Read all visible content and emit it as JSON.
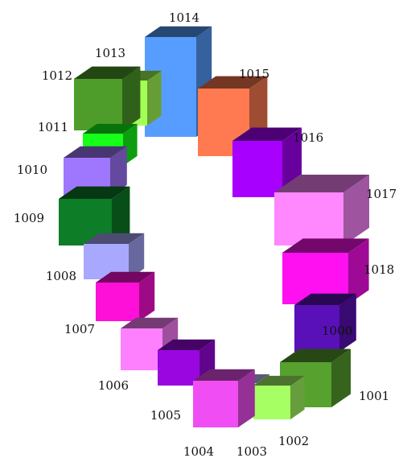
{
  "diagram": {
    "blocks": [
      {
        "label": "1000",
        "color": "#5a10b8"
      },
      {
        "label": "1001",
        "color": "#57a12e"
      },
      {
        "label": "1002",
        "color": "#a6ff63"
      },
      {
        "label": "1003",
        "color": "#c8c8ff"
      },
      {
        "label": "1004",
        "color": "#f04ef4"
      },
      {
        "label": "1005",
        "color": "#9a06e0"
      },
      {
        "label": "1006",
        "color": "#ff80ff"
      },
      {
        "label": "1007",
        "color": "#ff10d8"
      },
      {
        "label": "1008",
        "color": "#a8a8ff"
      },
      {
        "label": "1009",
        "color": "#0d7d28"
      },
      {
        "label": "1010",
        "color": "#9f77ff"
      },
      {
        "label": "1011",
        "color": "#15ff18"
      },
      {
        "label": "1012",
        "color": "#4e9d2a"
      },
      {
        "label": "1013",
        "color": "#a4ff55"
      },
      {
        "label": "1014",
        "color": "#569dff"
      },
      {
        "label": "1015",
        "color": "#ff7a50"
      },
      {
        "label": "1016",
        "color": "#a800ff"
      },
      {
        "label": "1017",
        "color": "#ff88ff"
      },
      {
        "label": "1018",
        "color": "#ff10f0"
      }
    ]
  }
}
